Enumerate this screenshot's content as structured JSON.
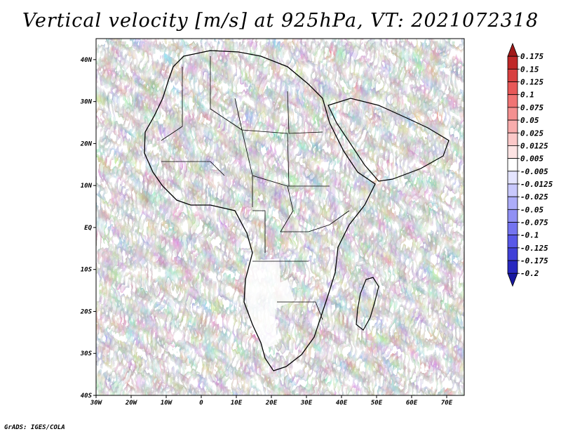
{
  "title": "Vertical velocity [m/s] at 925hPa, VT: 2021072318",
  "credit": "GrADS: IGES/COLA",
  "map": {
    "lon_range": [
      -30,
      75
    ],
    "lat_range": [
      -40,
      45
    ],
    "lat_ticks": [
      {
        "value": 40,
        "label": "40N"
      },
      {
        "value": 30,
        "label": "30N"
      },
      {
        "value": 20,
        "label": "20N"
      },
      {
        "value": 10,
        "label": "10N"
      },
      {
        "value": 0,
        "label": "EQ"
      },
      {
        "value": -10,
        "label": "10S"
      },
      {
        "value": -20,
        "label": "20S"
      },
      {
        "value": -30,
        "label": "30S"
      },
      {
        "value": -40,
        "label": "40S"
      }
    ],
    "lon_ticks": [
      {
        "value": -30,
        "label": "30W"
      },
      {
        "value": -20,
        "label": "20W"
      },
      {
        "value": -10,
        "label": "10W"
      },
      {
        "value": 0,
        "label": "0"
      },
      {
        "value": 10,
        "label": "10E"
      },
      {
        "value": 20,
        "label": "20E"
      },
      {
        "value": 30,
        "label": "30E"
      },
      {
        "value": 40,
        "label": "40E"
      },
      {
        "value": 50,
        "label": "50E"
      },
      {
        "value": 60,
        "label": "60E"
      },
      {
        "value": 70,
        "label": "70E"
      }
    ]
  },
  "colorbar": {
    "boundaries": [
      "0.175",
      "0.15",
      "0.125",
      "0.1",
      "0.075",
      "0.05",
      "0.025",
      "0.0125",
      "0.005",
      "-0.005",
      "-0.0125",
      "-0.025",
      "-0.05",
      "-0.075",
      "-0.1",
      "-0.125",
      "-0.175",
      "-0.2"
    ],
    "colors": [
      "#a01818",
      "#c02828",
      "#d84040",
      "#e85858",
      "#f07474",
      "#f49090",
      "#f8acac",
      "#fcc8c8",
      "#fee4e4",
      "#ffffff",
      "#e4e4fe",
      "#c8c8fc",
      "#acacf8",
      "#9090f4",
      "#7474f0",
      "#5858e8",
      "#4040d8",
      "#2828c0",
      "#1818a0"
    ]
  }
}
